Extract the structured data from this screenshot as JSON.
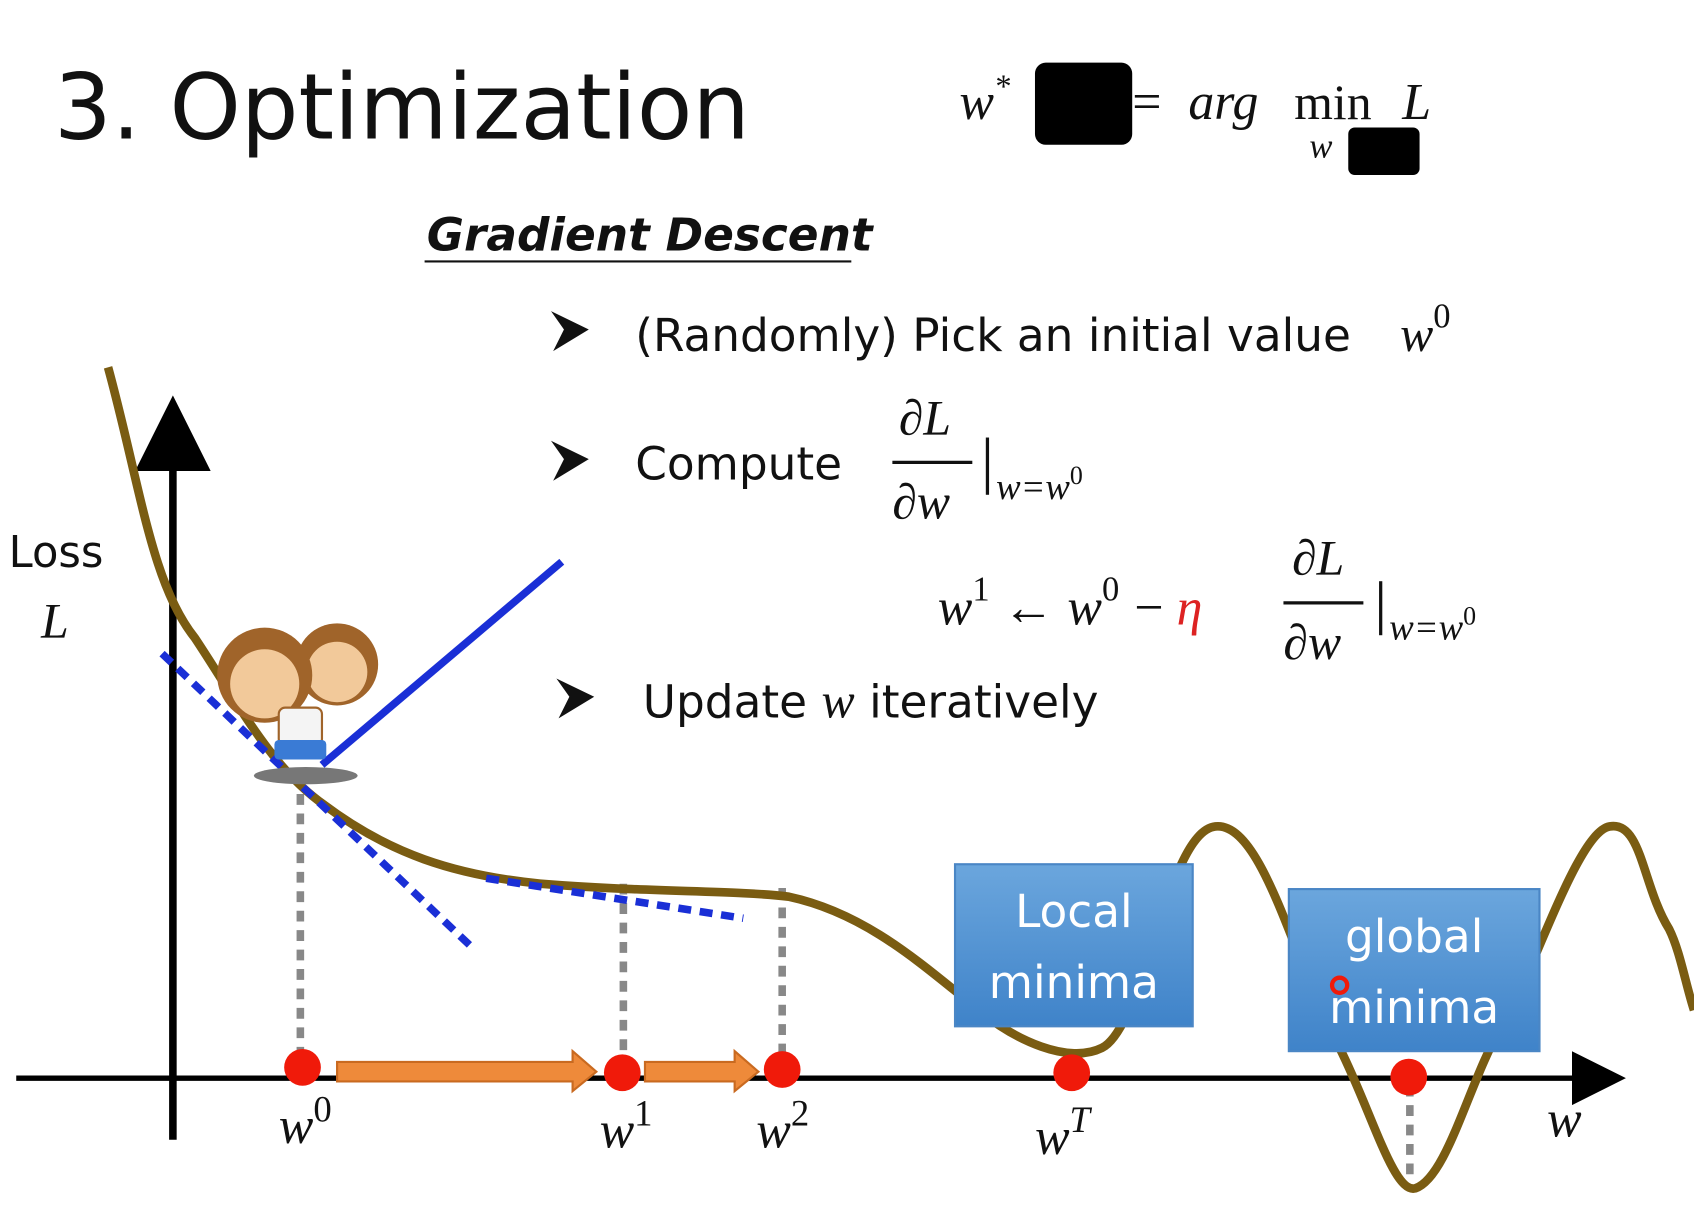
{
  "title": "3. Optimization",
  "objective": {
    "lhs": "w",
    "lhs_sup": "*",
    "eq": "=",
    "arg": "arg",
    "op": "min",
    "sub": "w",
    "rhs": "L"
  },
  "heading": "Gradient Descent",
  "steps": [
    {
      "text": "(Randomly) Pick an initial value",
      "var": "w",
      "sup": "0"
    },
    {
      "text": "Compute",
      "num": "∂L",
      "den": "∂w",
      "eval_sub": "w=w",
      "eval_sup": "0"
    },
    {
      "text": "Update",
      "var": "w",
      "rest": "iteratively"
    }
  ],
  "update_rule": {
    "lhs": "w",
    "lhs_sup": "1",
    "arrow": "←",
    "w": "w",
    "w_sup": "0",
    "minus": "−",
    "eta": "η",
    "num": "∂L",
    "den": "∂w",
    "eval_sub": "w=w",
    "eval_sup": "0"
  },
  "axis": {
    "y_label": [
      "Loss",
      "L"
    ],
    "x_label": "w"
  },
  "points": [
    {
      "var": "w",
      "sup": "0"
    },
    {
      "var": "w",
      "sup": "1"
    },
    {
      "var": "w",
      "sup": "2"
    },
    {
      "var": "w",
      "sup": "T"
    }
  ],
  "boxes": [
    [
      "Local",
      "minima"
    ],
    [
      "global",
      "minima"
    ]
  ]
}
